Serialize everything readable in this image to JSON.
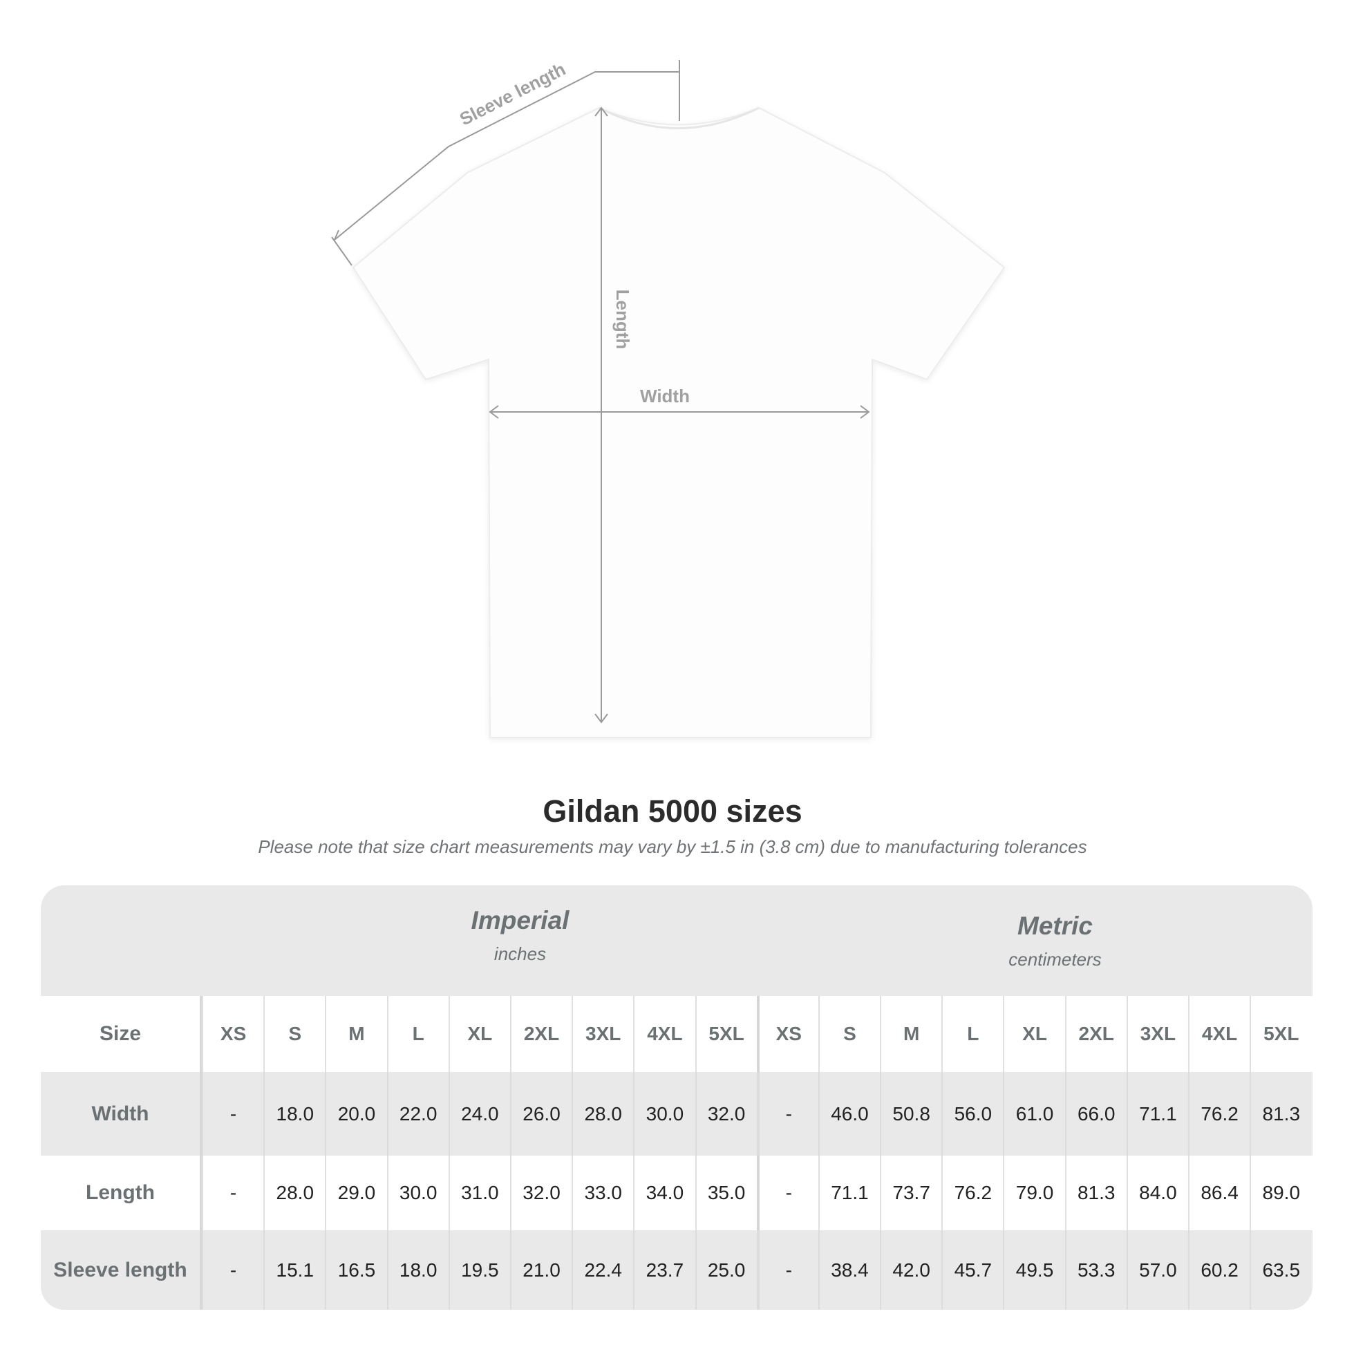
{
  "diagram": {
    "sleeve_label": "Sleeve length",
    "length_label": "Length",
    "width_label": "Width"
  },
  "title": "Gildan 5000 sizes",
  "note": "Please note that size chart measurements may vary by ±1.5 in (3.8 cm) due to manufacturing tolerances",
  "table": {
    "imperial": {
      "title": "Imperial",
      "unit": "inches"
    },
    "metric": {
      "title": "Metric",
      "unit": "centimeters"
    },
    "size_label": "Size",
    "sizes": [
      "XS",
      "S",
      "M",
      "L",
      "XL",
      "2XL",
      "3XL",
      "4XL",
      "5XL"
    ],
    "rows": [
      {
        "label": "Width",
        "imperial": [
          "-",
          "18.0",
          "20.0",
          "22.0",
          "24.0",
          "26.0",
          "28.0",
          "30.0",
          "32.0"
        ],
        "metric": [
          "-",
          "46.0",
          "50.8",
          "56.0",
          "61.0",
          "66.0",
          "71.1",
          "76.2",
          "81.3"
        ]
      },
      {
        "label": "Length",
        "imperial": [
          "-",
          "28.0",
          "29.0",
          "30.0",
          "31.0",
          "32.0",
          "33.0",
          "34.0",
          "35.0"
        ],
        "metric": [
          "-",
          "71.1",
          "73.7",
          "76.2",
          "79.0",
          "81.3",
          "84.0",
          "86.4",
          "89.0"
        ]
      },
      {
        "label": "Sleeve length",
        "imperial": [
          "-",
          "15.1",
          "16.5",
          "18.0",
          "19.5",
          "21.0",
          "22.4",
          "23.7",
          "25.0"
        ],
        "metric": [
          "-",
          "38.4",
          "42.0",
          "45.7",
          "49.5",
          "53.3",
          "57.0",
          "60.2",
          "63.5"
        ]
      }
    ]
  },
  "colors": {
    "table_bg": "#e9e9e9",
    "label_text": "#6b7173",
    "value_text": "#222222",
    "measure_line": "#9a9a9a"
  }
}
